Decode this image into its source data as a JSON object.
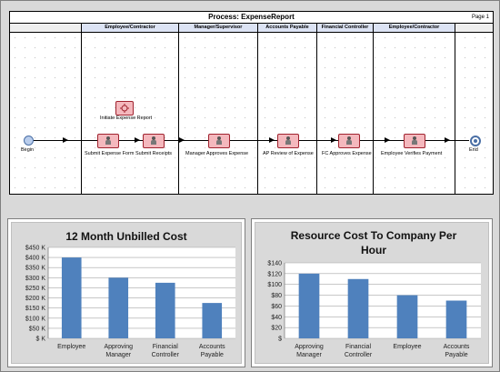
{
  "process": {
    "title": "Process: ExpenseReport",
    "page": "Page 1",
    "lanes": [
      "Employee/Contractor",
      "Manager/Supervisor",
      "Accounts Payable",
      "Financial Controller",
      "Employee/Contractor"
    ],
    "start_label": "Begin",
    "end_label": "End",
    "initiate_label": "Initiate Expense Report",
    "tasks": [
      "Submit Expense Form",
      "Submit Receipts",
      "Manager Approves Expense",
      "AP Review of Expense",
      "FC Approves Expense",
      "Employee Verifies Payment"
    ]
  },
  "chart_data": [
    {
      "type": "bar",
      "title": "12 Month Unbilled Cost",
      "categories": [
        "Employee",
        "Approving Manager",
        "Financial Controller",
        "Accounts Payable"
      ],
      "values": [
        400,
        300,
        275,
        175
      ],
      "ylim": [
        0,
        450
      ],
      "yticks": [
        "$ K",
        "$50 K",
        "$100 K",
        "$150 K",
        "$200 K",
        "$250 K",
        "$300 K",
        "$350 K",
        "$400 K",
        "$450 K"
      ],
      "grid": true,
      "color": "#4f81bd"
    },
    {
      "type": "bar",
      "title": "Resource Cost To Company Per Hour",
      "categories": [
        "Approving Manager",
        "Financial Controller",
        "Employee",
        "Accounts Payable"
      ],
      "values": [
        120,
        110,
        80,
        70
      ],
      "ylim": [
        0,
        140
      ],
      "yticks": [
        "$",
        "$20",
        "$40",
        "$60",
        "$80",
        "$100",
        "$120",
        "$140"
      ],
      "grid": true,
      "color": "#4f81bd"
    }
  ]
}
